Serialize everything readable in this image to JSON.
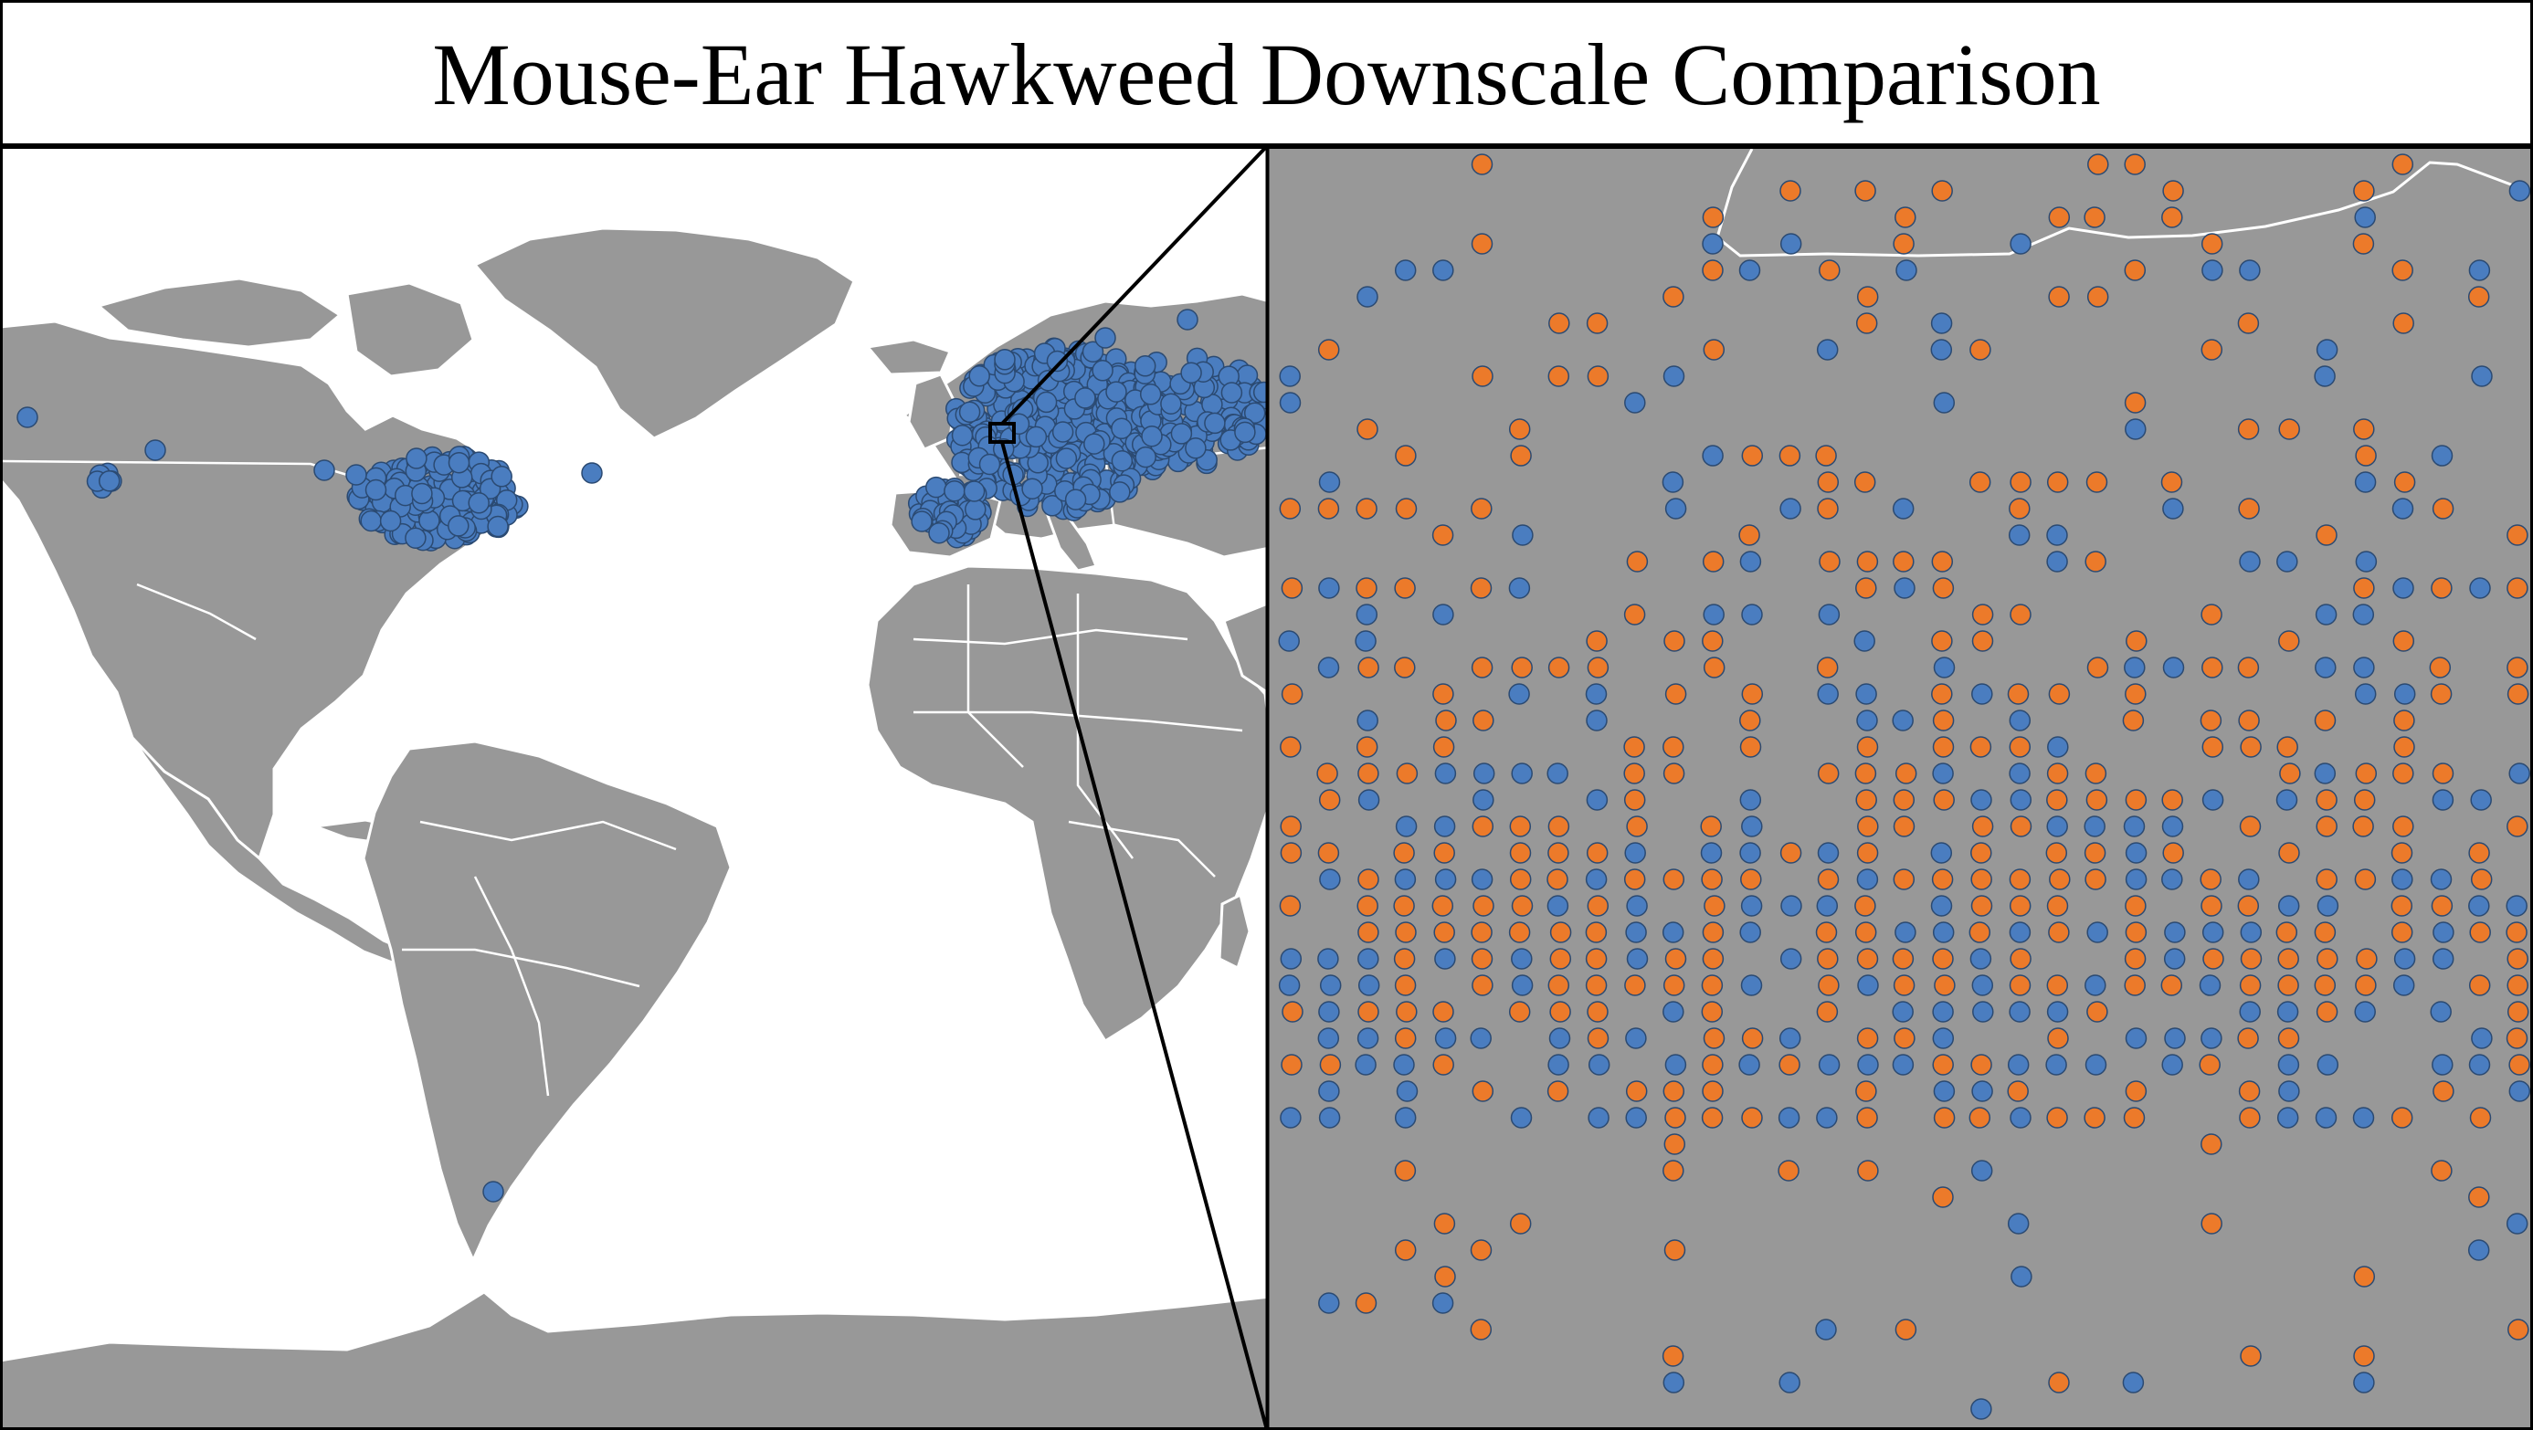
{
  "figure": {
    "title": "Mouse-Ear Hawkweed Downscale Comparison"
  },
  "colors": {
    "land": "#989898",
    "ocean": "#ffffff",
    "borders": "#ffffff",
    "occurrence_blue": "#4a7dc0",
    "occurrence_orange": "#ec7a2a",
    "marker_edge": "#2b4a72",
    "frame": "#000000"
  },
  "panels": {
    "world_map": {
      "name": "world-overview-map",
      "legend": "none",
      "marker_color": "occurrence_blue"
    },
    "zoom_inset": {
      "name": "downscaled-zoom-panel",
      "marker_colors": [
        "occurrence_blue",
        "occurrence_orange"
      ]
    }
  }
}
